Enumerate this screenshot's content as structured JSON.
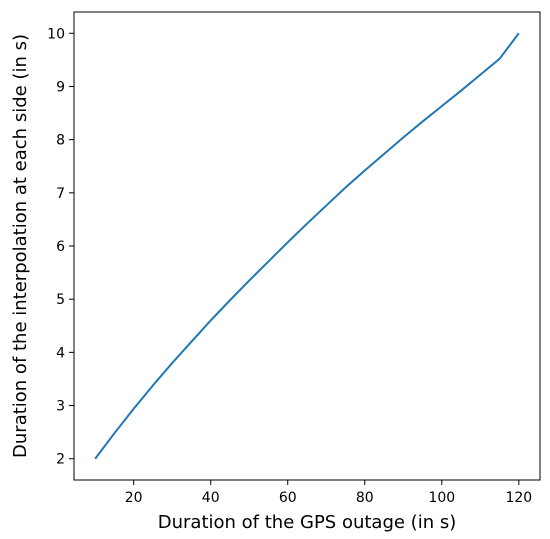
{
  "chart_data": {
    "type": "line",
    "title": "",
    "xlabel": "Duration of the GPS outage (in s)",
    "ylabel": "Duration of the interpolation at each side (in s)",
    "xlim": [
      4.5,
      125.5
    ],
    "ylim": [
      1.6,
      10.4
    ],
    "xticks": [
      20,
      40,
      60,
      80,
      100,
      120
    ],
    "yticks": [
      2,
      3,
      4,
      5,
      6,
      7,
      8,
      9,
      10
    ],
    "grid": false,
    "line_color": "#1f77b4",
    "series": [
      {
        "x": [
          10,
          15,
          20,
          25,
          30,
          35,
          40,
          45,
          50,
          55,
          60,
          65,
          70,
          75,
          80,
          85,
          90,
          95,
          100,
          105,
          110,
          115,
          120
        ],
        "values": [
          2.0,
          2.48,
          2.94,
          3.38,
          3.8,
          4.2,
          4.6,
          4.98,
          5.35,
          5.71,
          6.07,
          6.42,
          6.76,
          7.1,
          7.42,
          7.73,
          8.04,
          8.34,
          8.63,
          8.92,
          9.22,
          9.52,
          10.0
        ]
      }
    ]
  }
}
